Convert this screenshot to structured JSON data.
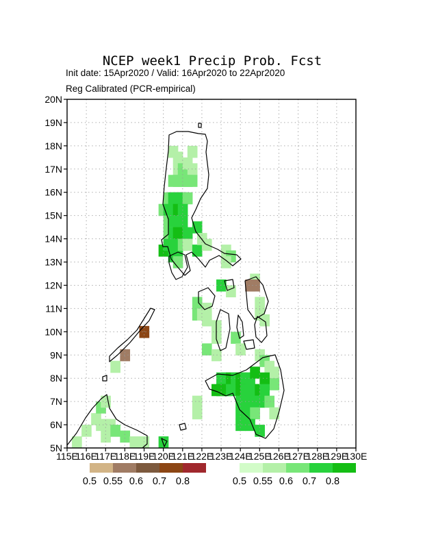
{
  "title": "NCEP week1 Precip Prob. Fcst",
  "subtitle_1": "Init date: 15Apr2020 / Valid: 16Apr2020 to 22Apr2020",
  "subtitle_2": "Reg Calibrated (PCR-empirical)",
  "axes": {
    "lon_range": [
      115,
      130
    ],
    "lat_range": [
      5,
      20
    ],
    "lon_ticks": [
      "115E",
      "116E",
      "117E",
      "118E",
      "119E",
      "120E",
      "121E",
      "122E",
      "123E",
      "124E",
      "125E",
      "126E",
      "127E",
      "128E",
      "129E",
      "130E"
    ],
    "lat_ticks": [
      "5N",
      "6N",
      "7N",
      "8N",
      "9N",
      "10N",
      "11N",
      "12N",
      "13N",
      "14N",
      "15N",
      "16N",
      "17N",
      "18N",
      "19N",
      "20N"
    ],
    "grid": "dotted"
  },
  "legend_dry": {
    "colors": [
      "#d2b486",
      "#a07c64",
      "#7d5a3e",
      "#8c4614",
      "#a0282d"
    ],
    "labels": [
      "0.5",
      "0.55",
      "0.6",
      "0.7",
      "0.8"
    ]
  },
  "legend_wet": {
    "colors": [
      "#d2fcc8",
      "#b4f0a8",
      "#78e678",
      "#28d23c",
      "#14be14"
    ],
    "labels": [
      "0.5",
      "0.55",
      "0.6",
      "0.7",
      "0.8"
    ]
  },
  "chart_data": {
    "type": "heatmap",
    "cell_size_deg": 0.5,
    "dry_cells": [
      [
        124.5,
        12.0,
        1
      ],
      [
        124.75,
        12.0,
        1
      ],
      [
        119.0,
        10.0,
        3
      ],
      [
        118.0,
        9.0,
        1
      ]
    ],
    "wet_cells": [
      [
        120.5,
        17.75,
        1
      ],
      [
        120.75,
        17.5,
        1
      ],
      [
        120.75,
        17.0,
        1
      ],
      [
        121.0,
        17.0,
        2
      ],
      [
        121.25,
        17.25,
        1
      ],
      [
        121.5,
        17.75,
        1
      ],
      [
        121.5,
        17.0,
        1
      ],
      [
        120.5,
        16.5,
        2
      ],
      [
        120.75,
        16.5,
        2
      ],
      [
        121.0,
        16.5,
        2
      ],
      [
        121.25,
        16.5,
        2
      ],
      [
        121.5,
        16.5,
        2
      ],
      [
        120.25,
        15.75,
        2
      ],
      [
        120.5,
        15.75,
        3
      ],
      [
        120.75,
        15.75,
        3
      ],
      [
        121.0,
        15.75,
        3
      ],
      [
        121.25,
        15.75,
        2
      ],
      [
        120.0,
        15.25,
        2
      ],
      [
        120.25,
        15.25,
        3
      ],
      [
        120.5,
        15.25,
        3
      ],
      [
        120.75,
        15.25,
        4
      ],
      [
        121.0,
        15.25,
        3
      ],
      [
        120.25,
        14.75,
        2
      ],
      [
        120.5,
        14.75,
        3
      ],
      [
        120.75,
        14.75,
        3
      ],
      [
        121.0,
        14.75,
        3
      ],
      [
        120.25,
        14.25,
        2
      ],
      [
        120.5,
        14.25,
        3
      ],
      [
        120.75,
        14.25,
        4
      ],
      [
        121.25,
        14.25,
        3
      ],
      [
        121.75,
        14.5,
        3
      ],
      [
        120.0,
        13.5,
        4
      ],
      [
        120.25,
        13.75,
        3
      ],
      [
        120.5,
        13.75,
        3
      ],
      [
        120.75,
        13.5,
        3
      ],
      [
        120.5,
        13.25,
        3
      ],
      [
        120.75,
        13.0,
        2
      ],
      [
        121.0,
        13.75,
        2
      ],
      [
        121.25,
        13.75,
        1
      ],
      [
        121.75,
        13.5,
        3
      ],
      [
        122.0,
        14.0,
        1
      ],
      [
        122.25,
        13.75,
        1
      ],
      [
        123.25,
        13.5,
        1
      ],
      [
        123.5,
        13.25,
        2
      ],
      [
        123.25,
        13.0,
        1
      ],
      [
        123.0,
        12.0,
        3
      ],
      [
        123.5,
        11.75,
        1
      ],
      [
        124.75,
        12.25,
        1
      ],
      [
        125.0,
        11.25,
        1
      ],
      [
        125.0,
        10.75,
        1
      ],
      [
        125.25,
        10.5,
        1
      ],
      [
        121.75,
        11.25,
        2
      ],
      [
        121.75,
        10.75,
        2
      ],
      [
        122.0,
        10.75,
        1
      ],
      [
        122.25,
        11.0,
        1
      ],
      [
        122.25,
        10.5,
        1
      ],
      [
        122.75,
        10.25,
        1
      ],
      [
        122.75,
        9.75,
        1
      ],
      [
        122.25,
        9.25,
        2
      ],
      [
        122.75,
        9.0,
        1
      ],
      [
        123.75,
        9.75,
        2
      ],
      [
        124.0,
        9.25,
        1
      ],
      [
        125.0,
        9.0,
        1
      ],
      [
        125.25,
        8.75,
        2
      ],
      [
        125.5,
        8.5,
        1
      ],
      [
        125.75,
        8.25,
        1
      ],
      [
        125.75,
        7.75,
        2
      ],
      [
        123.0,
        8.0,
        3
      ],
      [
        123.25,
        8.0,
        3
      ],
      [
        123.5,
        8.0,
        4
      ],
      [
        123.75,
        8.0,
        3
      ],
      [
        122.75,
        7.5,
        4
      ],
      [
        123.0,
        7.5,
        4
      ],
      [
        123.25,
        7.5,
        4
      ],
      [
        123.5,
        7.5,
        3
      ],
      [
        124.0,
        8.0,
        4
      ],
      [
        124.25,
        8.0,
        3
      ],
      [
        124.5,
        8.0,
        3
      ],
      [
        124.75,
        8.25,
        4
      ],
      [
        125.25,
        8.0,
        4
      ],
      [
        124.0,
        7.5,
        4
      ],
      [
        124.25,
        7.5,
        3
      ],
      [
        124.5,
        7.5,
        3
      ],
      [
        124.75,
        7.5,
        3
      ],
      [
        125.0,
        7.5,
        4
      ],
      [
        125.25,
        7.5,
        3
      ],
      [
        124.0,
        7.0,
        3
      ],
      [
        124.25,
        7.0,
        3
      ],
      [
        124.75,
        7.0,
        3
      ],
      [
        125.0,
        7.0,
        3
      ],
      [
        125.5,
        7.0,
        2
      ],
      [
        124.0,
        6.5,
        3
      ],
      [
        124.5,
        6.5,
        3
      ],
      [
        124.75,
        6.5,
        2
      ],
      [
        125.75,
        6.5,
        1
      ],
      [
        124.0,
        6.0,
        3
      ],
      [
        124.5,
        6.0,
        3
      ],
      [
        125.0,
        5.75,
        3
      ],
      [
        121.75,
        7.0,
        1
      ],
      [
        121.75,
        6.5,
        1
      ],
      [
        116.0,
        5.75,
        1
      ],
      [
        116.5,
        6.25,
        1
      ],
      [
        116.75,
        6.75,
        2
      ],
      [
        117.0,
        7.0,
        1
      ],
      [
        116.75,
        6.0,
        1
      ],
      [
        117.25,
        6.0,
        1
      ],
      [
        117.0,
        5.5,
        1
      ],
      [
        117.5,
        5.75,
        2
      ],
      [
        118.0,
        5.5,
        2
      ],
      [
        118.5,
        5.25,
        1
      ],
      [
        119.0,
        5.25,
        1
      ],
      [
        115.5,
        5.25,
        1
      ],
      [
        117.5,
        8.5,
        1
      ],
      [
        120.0,
        5.25,
        3
      ]
    ]
  }
}
